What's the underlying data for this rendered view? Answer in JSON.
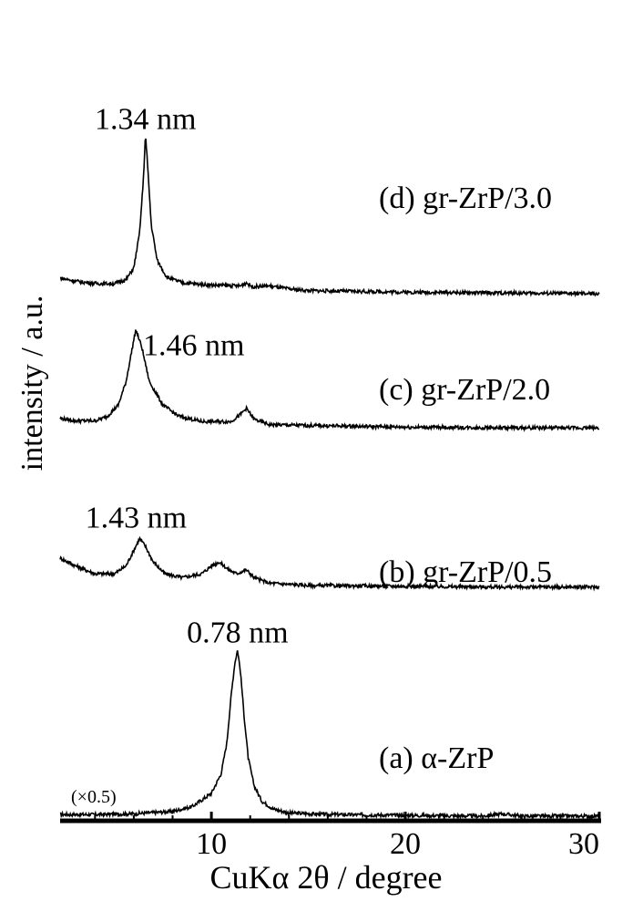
{
  "chart_data": {
    "type": "line",
    "xlabel": "CuKα 2θ / degree",
    "ylabel": "intensity / a.u.",
    "xlim": [
      2.2,
      30
    ],
    "ylim": [
      0,
      100
    ],
    "xticks": [
      10,
      20,
      30
    ],
    "xtick_labels": [
      "10",
      "20",
      "30"
    ],
    "grid": false,
    "legend": "none",
    "y_scale_note": "(×0.5)",
    "series": [
      {
        "name": "(a) α-ZrP",
        "points": [
          [
            2.2,
            0.8
          ],
          [
            4,
            0.8
          ],
          [
            6,
            0.9
          ],
          [
            8,
            1.2
          ],
          [
            9,
            1.8
          ],
          [
            10,
            3.5
          ],
          [
            10.5,
            6
          ],
          [
            10.8,
            10
          ],
          [
            11,
            15.5
          ],
          [
            11.2,
            20
          ],
          [
            11.35,
            21.8
          ],
          [
            11.5,
            19
          ],
          [
            11.7,
            13
          ],
          [
            11.9,
            8
          ],
          [
            12.2,
            4.5
          ],
          [
            12.6,
            2.5
          ],
          [
            13.2,
            1.5
          ],
          [
            14,
            1
          ],
          [
            16,
            0.8
          ],
          [
            20,
            0.7
          ],
          [
            24,
            0.6
          ],
          [
            25,
            0.9
          ],
          [
            26,
            0.6
          ],
          [
            30,
            0.6
          ]
        ],
        "annotation": {
          "text": "0.78 nm",
          "x": 11.35,
          "y": 21.8
        }
      },
      {
        "name": "(b) gr-ZrP/0.5",
        "points": [
          [
            2.2,
            33.5
          ],
          [
            3,
            32.5
          ],
          [
            4,
            31.5
          ],
          [
            5,
            31.5
          ],
          [
            5.6,
            32.5
          ],
          [
            6,
            34.5
          ],
          [
            6.3,
            36
          ],
          [
            6.6,
            35
          ],
          [
            7,
            33
          ],
          [
            7.6,
            31.5
          ],
          [
            8.5,
            31
          ],
          [
            9.5,
            31.5
          ],
          [
            10,
            32.5
          ],
          [
            10.4,
            33
          ],
          [
            10.9,
            32
          ],
          [
            11.3,
            31.5
          ],
          [
            11.8,
            32
          ],
          [
            12.2,
            31
          ],
          [
            13,
            30.3
          ],
          [
            15,
            30
          ],
          [
            20,
            29.9
          ],
          [
            25,
            29.8
          ],
          [
            30,
            29.8
          ]
        ],
        "annotation": {
          "text": "1.43 nm",
          "x": 6.3,
          "y": 36
        }
      },
      {
        "name": "(c) gr-ZrP/2.0",
        "points": [
          [
            2.2,
            51.3
          ],
          [
            3,
            51
          ],
          [
            4,
            51
          ],
          [
            4.6,
            51.5
          ],
          [
            5.2,
            53
          ],
          [
            5.6,
            56
          ],
          [
            5.9,
            60
          ],
          [
            6.1,
            62.6
          ],
          [
            6.4,
            60.5
          ],
          [
            6.8,
            56
          ],
          [
            7.5,
            53
          ],
          [
            8.3,
            51.6
          ],
          [
            9.5,
            50.9
          ],
          [
            11,
            50.9
          ],
          [
            11.5,
            51.8
          ],
          [
            11.8,
            52.6
          ],
          [
            12.2,
            51.2
          ],
          [
            13,
            50.5
          ],
          [
            15,
            50.4
          ],
          [
            20,
            50.2
          ],
          [
            25,
            50.1
          ],
          [
            30,
            50.1
          ]
        ],
        "annotation": {
          "text": "1.46 nm",
          "x": 6.1,
          "y": 62.6
        }
      },
      {
        "name": "(d) gr-ZrP/3.0",
        "points": [
          [
            2.2,
            69.2
          ],
          [
            3,
            68.8
          ],
          [
            4,
            68.5
          ],
          [
            5,
            68.5
          ],
          [
            5.6,
            69
          ],
          [
            6,
            70.5
          ],
          [
            6.3,
            75
          ],
          [
            6.5,
            82
          ],
          [
            6.6,
            87.5
          ],
          [
            6.7,
            84
          ],
          [
            6.9,
            76
          ],
          [
            7.2,
            71.5
          ],
          [
            7.7,
            69.3
          ],
          [
            8.5,
            68.6
          ],
          [
            10,
            68.3
          ],
          [
            11.5,
            68.2
          ],
          [
            11.8,
            68.6
          ],
          [
            12.1,
            68.1
          ],
          [
            13,
            68.2
          ],
          [
            14,
            67.8
          ],
          [
            15,
            67.6
          ],
          [
            20,
            67.4
          ],
          [
            25,
            67.3
          ],
          [
            30,
            67.2
          ]
        ],
        "annotation": {
          "text": "1.34 nm",
          "x": 6.6,
          "y": 87.5
        }
      }
    ]
  }
}
